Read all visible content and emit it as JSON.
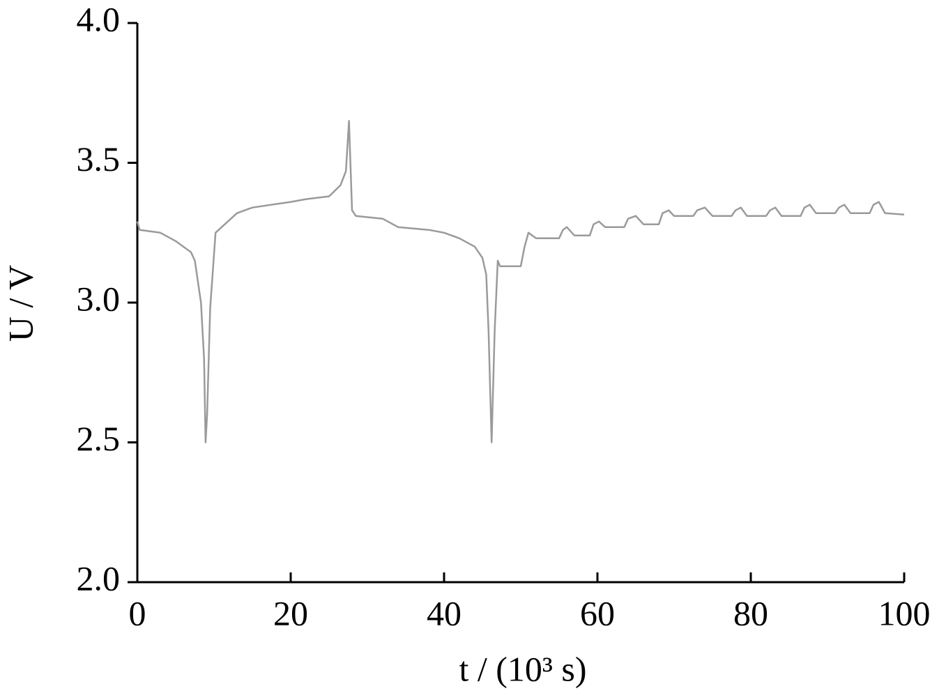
{
  "chart_data": {
    "type": "line",
    "x_label": "t / (10³ s)",
    "y_label": "U / V",
    "xlim": [
      0,
      100
    ],
    "ylim": [
      2.0,
      4.0
    ],
    "xticks": [
      0,
      20,
      40,
      60,
      80,
      100
    ],
    "yticks": [
      {
        "value": 2.0,
        "label": "2.0"
      },
      {
        "value": 2.5,
        "label": "2.5"
      },
      {
        "value": 3.0,
        "label": "3.0"
      },
      {
        "value": 3.5,
        "label": "3.5"
      },
      {
        "value": 4.0,
        "label": "4.0"
      }
    ],
    "grid": false,
    "series": [
      {
        "color": "#9a9a9a",
        "x": [
          0,
          0.3,
          3,
          5,
          7,
          7.5,
          8.3,
          8.7,
          8.9,
          9.1,
          9.5,
          10.2,
          11,
          13,
          15,
          20,
          22,
          25,
          26.5,
          27.2,
          27.6,
          28,
          28.5,
          32,
          34,
          38,
          40,
          42,
          44,
          45,
          45.5,
          45.8,
          46.2,
          46.6,
          47,
          47.3,
          50,
          50.5,
          51,
          52,
          55,
          55.5,
          56,
          57,
          59,
          59.5,
          60.2,
          61,
          63.5,
          64,
          65,
          66,
          68,
          68.5,
          69.3,
          70,
          72.5,
          73,
          74,
          75,
          77.5,
          78,
          78.7,
          79.5,
          82,
          82.5,
          83.2,
          84,
          86.5,
          87,
          87.7,
          88.5,
          91,
          91.5,
          92.2,
          93,
          95.5,
          96,
          96.7,
          97.5,
          100
        ],
        "values": [
          3.29,
          3.26,
          3.25,
          3.22,
          3.18,
          3.15,
          3.0,
          2.8,
          2.5,
          2.6,
          2.98,
          3.25,
          3.27,
          3.32,
          3.34,
          3.36,
          3.37,
          3.38,
          3.42,
          3.47,
          3.65,
          3.33,
          3.31,
          3.3,
          3.27,
          3.26,
          3.25,
          3.23,
          3.2,
          3.16,
          3.1,
          2.9,
          2.5,
          2.9,
          3.15,
          3.13,
          3.13,
          3.2,
          3.25,
          3.23,
          3.23,
          3.26,
          3.27,
          3.24,
          3.24,
          3.28,
          3.29,
          3.27,
          3.27,
          3.3,
          3.31,
          3.28,
          3.28,
          3.32,
          3.33,
          3.31,
          3.31,
          3.33,
          3.34,
          3.31,
          3.31,
          3.33,
          3.34,
          3.31,
          3.31,
          3.33,
          3.34,
          3.31,
          3.31,
          3.34,
          3.35,
          3.32,
          3.32,
          3.34,
          3.35,
          3.32,
          3.32,
          3.35,
          3.36,
          3.32,
          3.315
        ]
      }
    ]
  }
}
